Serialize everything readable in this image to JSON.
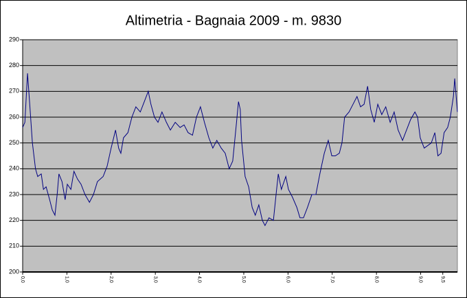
{
  "chart_data": {
    "type": "line",
    "title": "Altimetria - Bagnaia 2009 - m. 9830",
    "x": [
      0,
      0.05,
      0.11,
      0.16,
      0.22,
      0.29,
      0.34,
      0.42,
      0.47,
      0.53,
      0.61,
      0.67,
      0.73,
      0.78,
      0.82,
      0.89,
      0.96,
      1.01,
      1.09,
      1.16,
      1.24,
      1.32,
      1.41,
      1.51,
      1.6,
      1.69,
      1.82,
      1.91,
      2.0,
      2.1,
      2.17,
      2.22,
      2.28,
      2.38,
      2.47,
      2.56,
      2.66,
      2.75,
      2.84,
      2.9,
      2.98,
      3.06,
      3.15,
      3.25,
      3.34,
      3.45,
      3.56,
      3.65,
      3.74,
      3.84,
      3.93,
      4.02,
      4.11,
      4.21,
      4.3,
      4.39,
      4.49,
      4.58,
      4.67,
      4.75,
      4.83,
      4.88,
      4.92,
      4.95,
      5.03,
      5.11,
      5.19,
      5.26,
      5.34,
      5.42,
      5.48,
      5.57,
      5.67,
      5.73,
      5.78,
      5.85,
      5.95,
      6.01,
      6.1,
      6.2,
      6.27,
      6.35,
      6.44,
      6.54,
      6.63,
      6.72,
      6.82,
      6.91,
      6.99,
      7.07,
      7.16,
      7.22,
      7.28,
      7.38,
      7.47,
      7.56,
      7.64,
      7.72,
      7.8,
      7.87,
      7.95,
      8.03,
      8.12,
      8.21,
      8.31,
      8.4,
      8.49,
      8.59,
      8.68,
      8.77,
      8.87,
      8.93,
      8.99,
      9.08,
      9.16,
      9.24,
      9.32,
      9.39,
      9.46,
      9.53,
      9.61,
      9.67,
      9.74,
      9.77,
      9.83
    ],
    "series": [
      {
        "name": "Altimetria",
        "color": "#000080",
        "values": [
          256,
          258,
          277,
          265,
          250,
          240,
          237,
          238,
          232,
          233,
          228,
          224,
          222,
          230,
          238,
          235,
          228,
          234,
          232,
          239,
          236,
          234,
          230,
          227,
          230,
          235,
          237,
          241,
          248,
          255,
          248,
          246,
          252,
          254,
          260,
          264,
          262,
          266,
          270,
          265,
          260,
          258,
          262,
          258,
          255,
          258,
          256,
          257,
          254,
          253,
          260,
          264,
          258,
          252,
          248,
          251,
          248,
          246,
          240,
          243,
          257,
          266,
          263,
          251,
          237,
          233,
          225,
          222,
          226,
          220,
          218,
          221,
          220,
          230,
          238,
          232,
          237,
          232,
          229,
          225,
          221,
          221,
          225,
          230,
          230,
          238,
          246,
          251,
          245,
          245,
          246,
          250,
          260,
          262,
          265,
          268,
          264,
          265,
          272,
          263,
          258,
          265,
          261,
          264,
          258,
          262,
          255,
          251,
          255,
          259,
          262,
          260,
          252,
          248,
          249,
          250,
          254,
          245,
          246,
          254,
          256,
          260,
          268,
          275,
          262
        ]
      }
    ],
    "xlim": [
      0,
      9.83
    ],
    "xticks": [
      {
        "value": 0,
        "label": "0,0"
      },
      {
        "value": 1,
        "label": "1,0"
      },
      {
        "value": 2,
        "label": "2,0"
      },
      {
        "value": 3,
        "label": "3,0"
      },
      {
        "value": 4,
        "label": "4,0"
      },
      {
        "value": 5,
        "label": "5,0"
      },
      {
        "value": 6,
        "label": "6,0"
      },
      {
        "value": 7,
        "label": "7,0"
      },
      {
        "value": 8,
        "label": "8,0"
      },
      {
        "value": 9,
        "label": "9,0"
      },
      {
        "value": 9.5,
        "label": "9,5"
      }
    ],
    "ylim": [
      200,
      290
    ],
    "yticks": [
      200,
      210,
      220,
      230,
      240,
      250,
      260,
      270,
      280,
      290
    ],
    "grid": true,
    "plot_background": "#c0c0c0"
  }
}
